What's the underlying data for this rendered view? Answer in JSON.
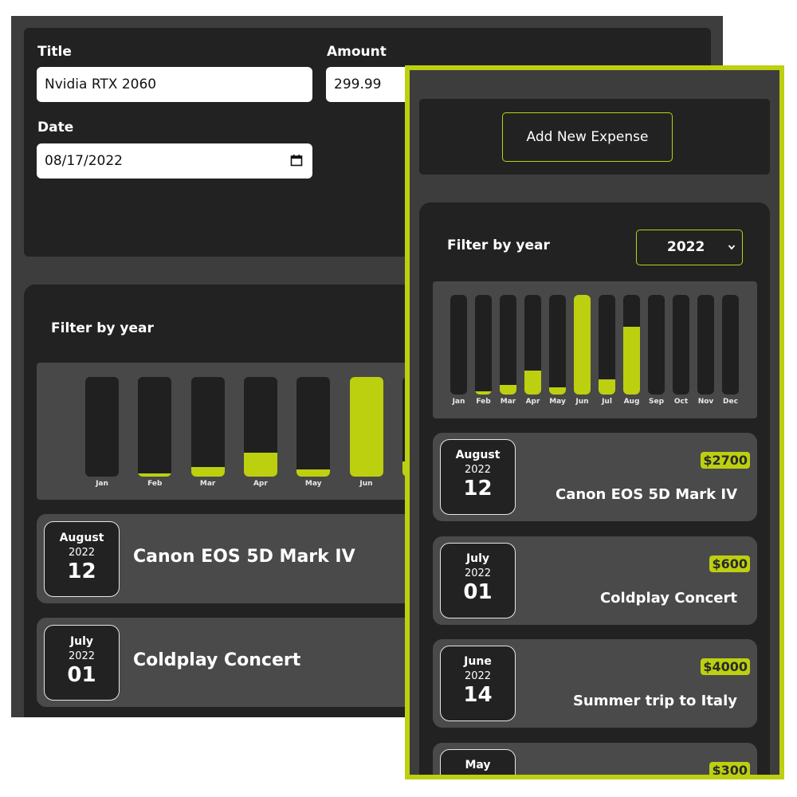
{
  "form": {
    "title_label": "Title",
    "title_value": "Nvidia RTX 2060",
    "amount_label": "Amount",
    "amount_value": "299.99",
    "date_label": "Date",
    "date_value": "08/17/2022"
  },
  "add_button_label": "Add New Expense",
  "filter": {
    "label": "Filter by year",
    "selected_year": "2022"
  },
  "chart_data": {
    "type": "bar",
    "categories": [
      "Jan",
      "Feb",
      "Mar",
      "Apr",
      "May",
      "Jun",
      "Jul",
      "Aug",
      "Sep",
      "Oct",
      "Nov",
      "Dec"
    ],
    "values": [
      0,
      0.03,
      0.1,
      0.24,
      0.07,
      1.0,
      0.15,
      0.68,
      0,
      0,
      0,
      0
    ],
    "ylim": [
      0,
      1
    ],
    "title": "",
    "xlabel": "",
    "ylabel": ""
  },
  "back_expenses": [
    {
      "month": "August",
      "year": "2022",
      "day": "12",
      "title": "Canon EOS 5D Mark IV"
    },
    {
      "month": "July",
      "year": "2022",
      "day": "01",
      "title": "Coldplay Concert"
    }
  ],
  "front_expenses": [
    {
      "month": "August",
      "year": "2022",
      "day": "12",
      "title": "Canon EOS 5D Mark IV",
      "price": "$2700"
    },
    {
      "month": "July",
      "year": "2022",
      "day": "01",
      "title": "Coldplay Concert",
      "price": "$600"
    },
    {
      "month": "June",
      "year": "2022",
      "day": "14",
      "title": "Summer trip to Italy",
      "price": "$4000"
    },
    {
      "month": "May",
      "year": "",
      "day": "",
      "title": "",
      "price": "$300"
    }
  ],
  "colors": {
    "accent": "#bcd010",
    "card": "#222222",
    "panel": "#3d3d3d",
    "item": "#4a4a4a"
  },
  "icons": {
    "date_picker": "calendar-icon",
    "select": "chevron-down-icon"
  }
}
